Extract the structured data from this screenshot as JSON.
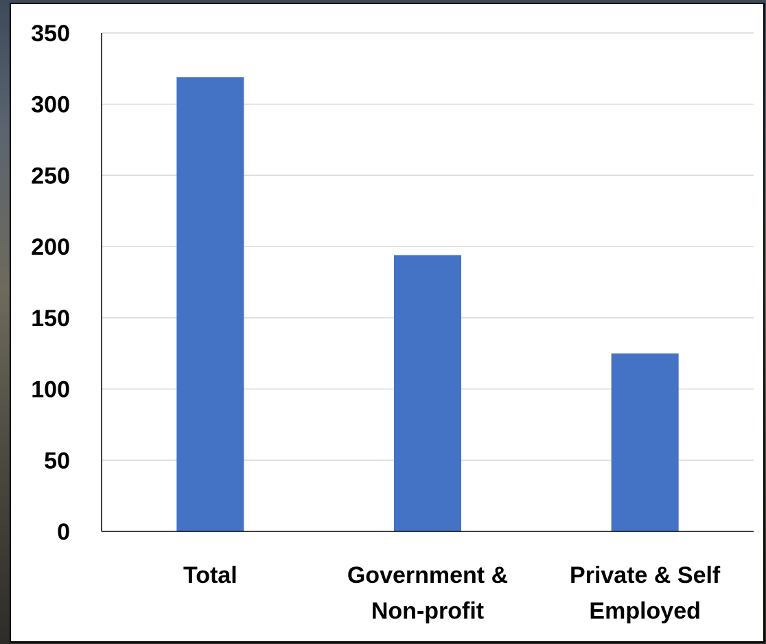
{
  "chart_data": {
    "type": "bar",
    "title": "",
    "xlabel": "",
    "ylabel": "",
    "categories": [
      [
        "Total"
      ],
      [
        "Government &",
        "Non-profit"
      ],
      [
        "Private & Self",
        "Employed"
      ]
    ],
    "values": [
      319,
      194,
      125
    ],
    "ylim": [
      0,
      350
    ],
    "yticks": [
      "0",
      "50",
      "100",
      "150",
      "200",
      "250",
      "300",
      "350"
    ],
    "grid": true,
    "legend": "none",
    "bar_color": "#4472C4",
    "grid_color": "#D9D9D9"
  }
}
